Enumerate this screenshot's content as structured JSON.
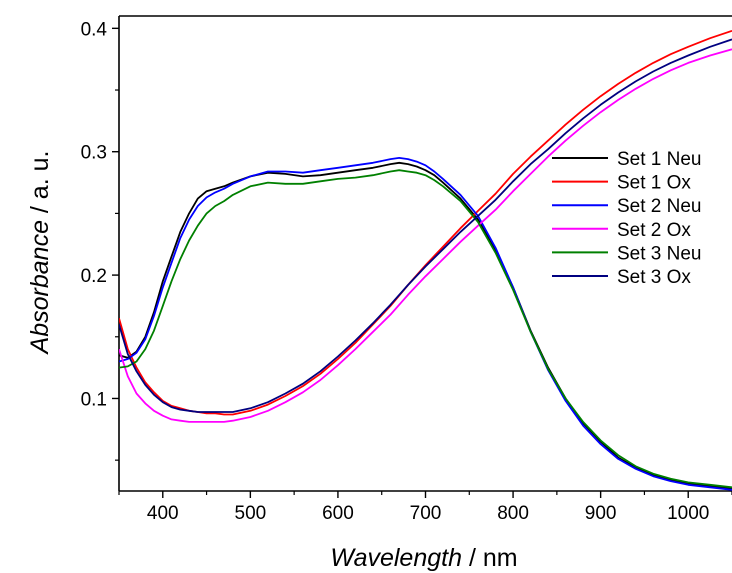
{
  "chart_data": {
    "type": "line",
    "xlabel_italic": "Wavelength",
    "xlabel_rest": " / nm",
    "ylabel_italic": "Absorbance",
    "ylabel_rest": " / a. u.",
    "xlim": [
      350,
      1050
    ],
    "ylim": [
      0.025,
      0.41
    ],
    "x_ticks": [
      400,
      500,
      600,
      700,
      800,
      900,
      1000
    ],
    "x_tick_labels": [
      "400",
      "500",
      "600",
      "700",
      "800",
      "900",
      "1000"
    ],
    "y_ticks": [
      0.1,
      0.2,
      0.3,
      0.4
    ],
    "y_tick_labels": [
      "0.1",
      "0.2",
      "0.3",
      "0.4"
    ],
    "grid": false,
    "legend_position": "right",
    "series": [
      {
        "name": "Set 1 Neu",
        "color": "#000000",
        "x": [
          350,
          360,
          370,
          380,
          390,
          400,
          410,
          420,
          430,
          440,
          450,
          460,
          470,
          480,
          500,
          520,
          540,
          560,
          580,
          600,
          620,
          640,
          660,
          670,
          680,
          690,
          700,
          710,
          720,
          740,
          760,
          780,
          800,
          820,
          840,
          860,
          880,
          900,
          920,
          940,
          960,
          980,
          1000,
          1025,
          1050
        ],
        "y": [
          0.135,
          0.133,
          0.138,
          0.15,
          0.17,
          0.195,
          0.215,
          0.235,
          0.25,
          0.262,
          0.268,
          0.27,
          0.272,
          0.275,
          0.28,
          0.283,
          0.282,
          0.28,
          0.281,
          0.283,
          0.285,
          0.287,
          0.29,
          0.291,
          0.29,
          0.288,
          0.285,
          0.281,
          0.275,
          0.262,
          0.245,
          0.22,
          0.19,
          0.155,
          0.125,
          0.1,
          0.08,
          0.065,
          0.052,
          0.044,
          0.038,
          0.034,
          0.031,
          0.029,
          0.027
        ]
      },
      {
        "name": "Set 1 Ox",
        "color": "#ff0000",
        "x": [
          350,
          360,
          370,
          380,
          390,
          400,
          410,
          420,
          430,
          440,
          450,
          460,
          470,
          480,
          500,
          520,
          540,
          560,
          580,
          600,
          620,
          640,
          660,
          680,
          700,
          720,
          740,
          760,
          780,
          800,
          820,
          840,
          860,
          880,
          900,
          920,
          940,
          960,
          980,
          1000,
          1025,
          1050
        ],
        "y": [
          0.165,
          0.14,
          0.125,
          0.113,
          0.105,
          0.098,
          0.094,
          0.092,
          0.09,
          0.089,
          0.088,
          0.088,
          0.087,
          0.087,
          0.09,
          0.095,
          0.102,
          0.11,
          0.12,
          0.132,
          0.145,
          0.16,
          0.175,
          0.192,
          0.208,
          0.223,
          0.238,
          0.252,
          0.266,
          0.282,
          0.296,
          0.309,
          0.322,
          0.334,
          0.345,
          0.355,
          0.364,
          0.372,
          0.379,
          0.385,
          0.392,
          0.398
        ]
      },
      {
        "name": "Set 2 Neu",
        "color": "#0000ff",
        "x": [
          350,
          360,
          370,
          380,
          390,
          400,
          410,
          420,
          430,
          440,
          450,
          460,
          470,
          480,
          500,
          520,
          540,
          560,
          580,
          600,
          620,
          640,
          660,
          670,
          680,
          690,
          700,
          710,
          720,
          740,
          760,
          780,
          800,
          820,
          840,
          860,
          880,
          900,
          920,
          940,
          960,
          980,
          1000,
          1025,
          1050
        ],
        "y": [
          0.13,
          0.132,
          0.137,
          0.148,
          0.167,
          0.19,
          0.21,
          0.23,
          0.245,
          0.256,
          0.263,
          0.267,
          0.27,
          0.274,
          0.28,
          0.284,
          0.284,
          0.283,
          0.285,
          0.287,
          0.289,
          0.291,
          0.294,
          0.295,
          0.294,
          0.292,
          0.289,
          0.284,
          0.278,
          0.265,
          0.248,
          0.222,
          0.19,
          0.154,
          0.123,
          0.098,
          0.078,
          0.063,
          0.051,
          0.043,
          0.037,
          0.033,
          0.03,
          0.028,
          0.026
        ]
      },
      {
        "name": "Set 2 Ox",
        "color": "#ff00ff",
        "x": [
          350,
          360,
          370,
          380,
          390,
          400,
          410,
          420,
          430,
          440,
          450,
          460,
          470,
          480,
          500,
          520,
          540,
          560,
          580,
          600,
          620,
          640,
          660,
          680,
          700,
          720,
          740,
          760,
          780,
          800,
          820,
          840,
          860,
          880,
          900,
          920,
          940,
          960,
          980,
          1000,
          1025,
          1050
        ],
        "y": [
          0.14,
          0.118,
          0.104,
          0.096,
          0.09,
          0.086,
          0.083,
          0.082,
          0.081,
          0.081,
          0.081,
          0.081,
          0.081,
          0.082,
          0.085,
          0.09,
          0.097,
          0.105,
          0.115,
          0.127,
          0.14,
          0.154,
          0.168,
          0.184,
          0.199,
          0.213,
          0.227,
          0.24,
          0.253,
          0.268,
          0.282,
          0.296,
          0.309,
          0.321,
          0.332,
          0.342,
          0.351,
          0.359,
          0.366,
          0.372,
          0.378,
          0.383
        ]
      },
      {
        "name": "Set 3 Neu",
        "color": "#008000",
        "x": [
          350,
          360,
          370,
          380,
          390,
          400,
          410,
          420,
          430,
          440,
          450,
          460,
          470,
          480,
          500,
          520,
          540,
          560,
          580,
          600,
          620,
          640,
          660,
          670,
          680,
          690,
          700,
          710,
          720,
          740,
          760,
          780,
          800,
          820,
          840,
          860,
          880,
          900,
          920,
          940,
          960,
          980,
          1000,
          1025,
          1050
        ],
        "y": [
          0.125,
          0.126,
          0.13,
          0.14,
          0.155,
          0.175,
          0.195,
          0.213,
          0.228,
          0.24,
          0.25,
          0.256,
          0.26,
          0.265,
          0.272,
          0.275,
          0.274,
          0.274,
          0.276,
          0.278,
          0.279,
          0.281,
          0.284,
          0.285,
          0.284,
          0.283,
          0.281,
          0.277,
          0.272,
          0.26,
          0.243,
          0.218,
          0.188,
          0.154,
          0.124,
          0.1,
          0.081,
          0.066,
          0.054,
          0.045,
          0.039,
          0.035,
          0.032,
          0.03,
          0.028
        ]
      },
      {
        "name": "Set 3 Ox",
        "color": "#000080",
        "x": [
          350,
          360,
          370,
          380,
          390,
          400,
          410,
          420,
          430,
          440,
          450,
          460,
          470,
          480,
          500,
          520,
          540,
          560,
          580,
          600,
          620,
          640,
          660,
          680,
          700,
          720,
          740,
          760,
          780,
          800,
          820,
          840,
          860,
          880,
          900,
          920,
          940,
          960,
          980,
          1000,
          1025,
          1050
        ],
        "y": [
          0.16,
          0.136,
          0.122,
          0.111,
          0.103,
          0.097,
          0.093,
          0.091,
          0.09,
          0.089,
          0.089,
          0.089,
          0.089,
          0.089,
          0.092,
          0.097,
          0.104,
          0.112,
          0.122,
          0.134,
          0.147,
          0.161,
          0.176,
          0.192,
          0.207,
          0.221,
          0.235,
          0.248,
          0.261,
          0.276,
          0.29,
          0.302,
          0.315,
          0.327,
          0.338,
          0.348,
          0.357,
          0.365,
          0.372,
          0.378,
          0.385,
          0.391
        ]
      }
    ]
  }
}
